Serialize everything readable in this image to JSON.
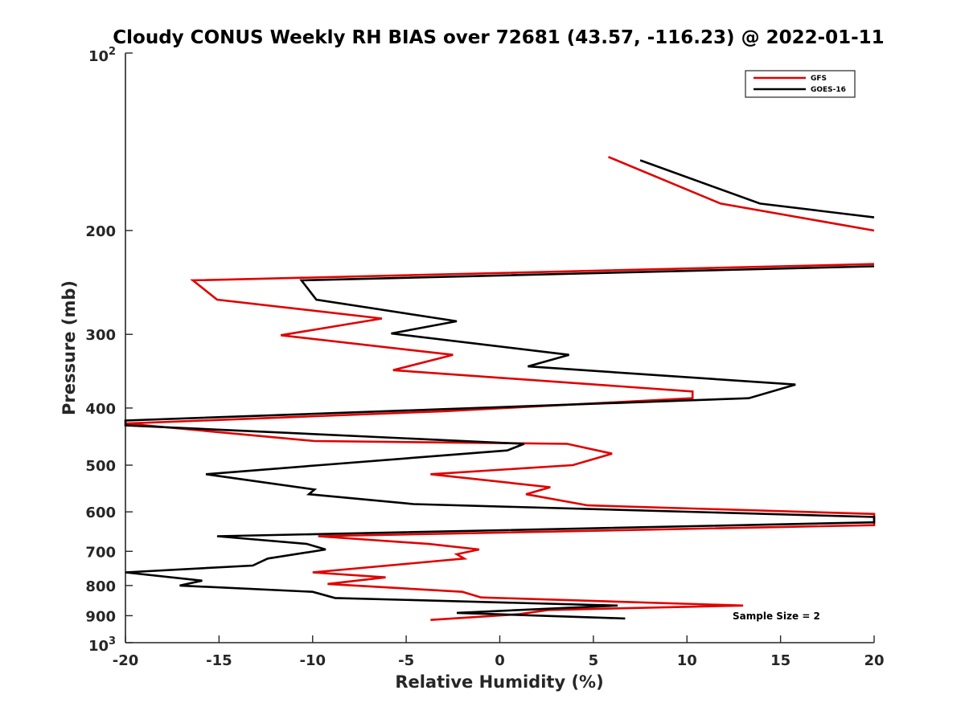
{
  "chart_data": {
    "type": "line",
    "title": "Cloudy CONUS Weekly RH BIAS over 72681 (43.57, -116.23) @ 2022-01-11",
    "xlabel": "Relative Humidity (%)",
    "ylabel": "Pressure (mb)",
    "xlim": [
      -20,
      20
    ],
    "ylim": [
      100,
      1000
    ],
    "y_scale": "log",
    "y_reversed": true,
    "grid": false,
    "legend_position": "top-right",
    "x_ticks": [
      "-20",
      "-15",
      "-10",
      "-5",
      "0",
      "5",
      "10",
      "15",
      "20"
    ],
    "y_ticks_plain": [
      "200",
      "300",
      "400",
      "500",
      "600",
      "700",
      "800",
      "900"
    ],
    "y_tick_top": {
      "base": "10",
      "exp": "2"
    },
    "y_tick_bottom": {
      "base": "10",
      "exp": "3"
    },
    "annotation": "Sample Size = 2",
    "series": [
      {
        "name": "GFS",
        "color": "#e00000",
        "points": [
          [
            5.8,
            150
          ],
          [
            11.8,
            180
          ],
          [
            20,
            200
          ],
          [
            null,
            null
          ],
          [
            20,
            228
          ],
          [
            -16.4,
            243
          ],
          [
            -15.1,
            262
          ],
          [
            -6.3,
            282
          ],
          [
            -11.7,
            301
          ],
          [
            -2.5,
            325
          ],
          [
            -5.7,
            345
          ],
          [
            10.3,
            375
          ],
          [
            10.3,
            385
          ],
          [
            -3.0,
            405
          ],
          [
            -20,
            425
          ],
          [
            -9.9,
            455
          ],
          [
            3.6,
            460
          ],
          [
            6.0,
            478
          ],
          [
            3.9,
            500
          ],
          [
            -3.7,
            518
          ],
          [
            2.7,
            545
          ],
          [
            1.4,
            560
          ],
          [
            4.7,
            585
          ],
          [
            20,
            605
          ],
          [
            20,
            632
          ],
          [
            -9.7,
            660
          ],
          [
            -3.8,
            680
          ],
          [
            -1.1,
            695
          ],
          [
            -2.3,
            708
          ],
          [
            -1.9,
            720
          ],
          [
            -10.0,
            760
          ],
          [
            -6.1,
            775
          ],
          [
            -9.2,
            795
          ],
          [
            -2.0,
            820
          ],
          [
            -1.0,
            838
          ],
          [
            13.0,
            865
          ],
          [
            2.6,
            880
          ],
          [
            1.0,
            895
          ],
          [
            -3.7,
            915
          ]
        ]
      },
      {
        "name": "GOES-16",
        "color": "#000000",
        "points": [
          [
            7.5,
            152
          ],
          [
            13.9,
            180
          ],
          [
            20,
            190
          ],
          [
            null,
            null
          ],
          [
            20,
            230
          ],
          [
            -10.6,
            243
          ],
          [
            -9.8,
            262
          ],
          [
            -2.3,
            285
          ],
          [
            -5.8,
            299
          ],
          [
            3.7,
            325
          ],
          [
            1.5,
            340
          ],
          [
            15.8,
            365
          ],
          [
            13.3,
            385
          ],
          [
            -20,
            420
          ],
          [
            -20,
            428
          ],
          [
            1.3,
            460
          ],
          [
            0.4,
            472
          ],
          [
            -9.6,
            500
          ],
          [
            -15.7,
            518
          ],
          [
            -9.9,
            550
          ],
          [
            -10.2,
            560
          ],
          [
            -4.6,
            582
          ],
          [
            20,
            612
          ],
          [
            20,
            625
          ],
          [
            -15.1,
            660
          ],
          [
            -10.3,
            680
          ],
          [
            -9.3,
            695
          ],
          [
            -12.4,
            720
          ],
          [
            -13.2,
            740
          ],
          [
            -20,
            760
          ],
          [
            -15.9,
            785
          ],
          [
            -17.1,
            800
          ],
          [
            -10.0,
            820
          ],
          [
            -8.8,
            840
          ],
          [
            6.3,
            865
          ],
          [
            -2.3,
            890
          ],
          [
            6.7,
            910
          ]
        ]
      }
    ]
  }
}
